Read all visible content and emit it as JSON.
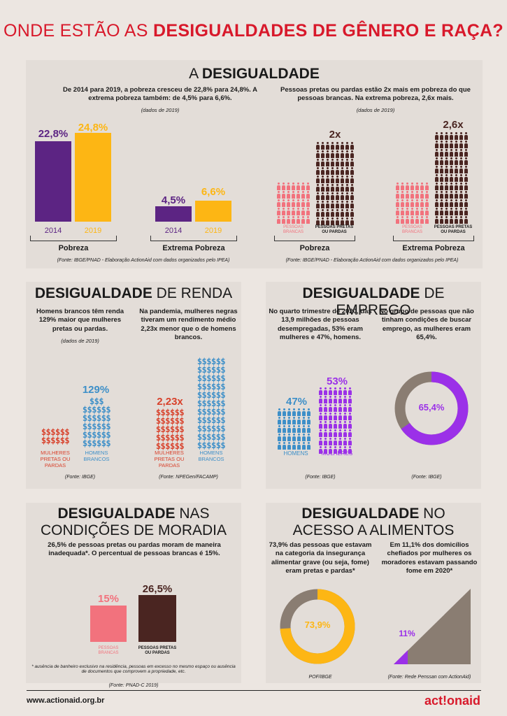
{
  "title": {
    "normal": "ONDE ESTÃO AS ",
    "bold": "DESIGUALDADES DE GÊNERO E RAÇA?"
  },
  "s1": {
    "title_normal": "A ",
    "title_bold": "DESIGUALDADE",
    "left_text": "De 2014 para 2019, a pobreza cresceu de 22,8% para 24,8%. A extrema pobreza também: de 4,5% para 6,6%.",
    "left_note": "(dados de 2019)",
    "right_text": "Pessoas pretas ou pardas estão 2x mais em pobreza do que pessoas brancas. Na extrema pobreza, 2,6x mais.",
    "right_note": "(dados de 2019)",
    "bars": {
      "p2014": "22,8%",
      "p2019": "24,8%",
      "e2014": "4,5%",
      "e2019": "6,6%",
      "y2014": "2014",
      "y2019": "2019"
    },
    "pobreza": "Pobreza",
    "extrema": "Extrema Pobreza",
    "mult1": "2x",
    "mult2": "2,6x",
    "lab_brancas": "PESSOAS BRANCAS",
    "lab_pretas": "PESSOAS PRETAS OU PARDAS",
    "src_left": "(Fonte: IBGE/PNAD - Elaboração ActionAid com dados organizados pelo IPEA)",
    "src_right": "(Fonte: IBGE/PNAD - Elaboração ActionAid com dados organizados pelo IPEA)"
  },
  "s2": {
    "title_bold": "DESIGUALDADE",
    "title_normal": " DE RENDA",
    "left_text": "Homens brancos têm renda 129% maior que mulheres pretas ou pardas.",
    "left_note": "(dados de 2019)",
    "right_text": "Na pandemia, mulheres negras tiveram um rendimento médio 2,23x menor que o de homens brancos.",
    "val1": "129%",
    "val2": "2,23x",
    "lab_mulheres": "MULHERES PRETAS OU PARDAS",
    "lab_homens": "HOMENS BRANCOS",
    "src_left": "(Fonte: IBGE)",
    "src_right": "(Fonte: NPEGen/FACAMP)"
  },
  "s3": {
    "title_bold": "DESIGUALDADE",
    "title_normal": " DE EMPREGO",
    "left_text": "No quarto trimestre de 2020, das 13,9 milhões de pessoas desempregadas, 53% eram mulheres e 47%, homens.",
    "right_text": "No grupo de pessoas que não tinham condições de buscar emprego, as mulheres eram 65,4%.",
    "homens_val": "47%",
    "mulheres_val": "53%",
    "homens": "HOMENS",
    "mulheres": "MULHERES",
    "donut_val": "65,4%",
    "src_left": "(Fonte: IBGE)",
    "src_right": "(Fonte: IBGE)"
  },
  "s4": {
    "title_bold": "DESIGUALDADE",
    "title_normal": " NAS",
    "title2": "CONDIÇÕES DE MORADIA",
    "text": "26,5% de pessoas pretas ou pardas moram de maneira inadequada*. O percentual de pessoas brancas é 15%.",
    "v1": "15%",
    "v2": "26,5%",
    "lab1": "PESSOAS BRANCAS",
    "lab2": "PESSOAS PRETAS OU PARDAS",
    "footnote": "* ausência de banheiro exclusivo na residência, pessoas em excesso no mesmo espaço ou ausência de documentos que comprovem a propriedade, etc.",
    "src": "(Fonte: PNAD-C 2019)"
  },
  "s5": {
    "title_bold": "DESIGUALDADE",
    "title_normal": " NO",
    "title2": "ACESSO A ALIMENTOS",
    "left_text": "73,9% das pessoas que estavam na categoria da insegurança alimentar grave (ou seja, fome) eram pretas e pardas*",
    "right_text": "Em 11,1% dos domicílios chefiados por mulheres os moradores estavam passando fome em 2020*",
    "donut_val": "73,9%",
    "tri_val": "11%",
    "src_left": "POF/IBGE",
    "src_right": "(Fonte: Rede Penssan com ActionAid)"
  },
  "footer": {
    "url": "www.actionaid.org.br",
    "brand": "act!onaid"
  },
  "colors": {
    "purple": "#5c2483",
    "yellow": "#fdb614",
    "pink": "#f2727d",
    "brown": "#4a2521",
    "blue": "#3d8fc8",
    "red": "#d8412b",
    "violet": "#9b30e8",
    "taupe": "#8a7d72"
  }
}
